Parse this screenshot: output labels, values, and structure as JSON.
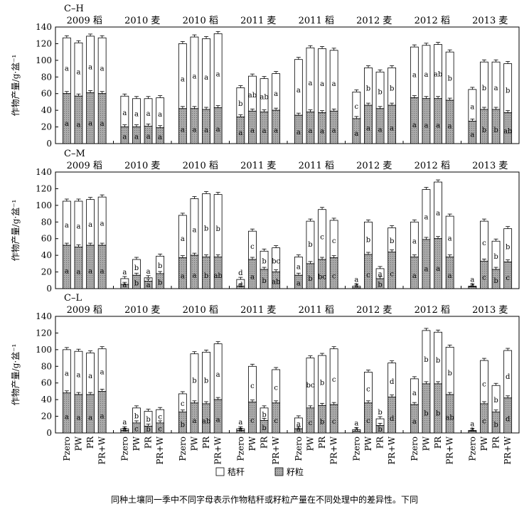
{
  "caption": "同种土壤同一季中不同字母表示作物秸秆或籽粒产量在不同处理中的差异性。下同",
  "chart_data": {
    "type": "bar",
    "stacked": true,
    "ylabel": "作物产量/g·盆⁻¹",
    "ylim": [
      0,
      140
    ],
    "yticks": [
      0,
      20,
      40,
      60,
      80,
      100,
      120,
      140
    ],
    "treatments": [
      "Pzero",
      "PW",
      "PR",
      "PR+W"
    ],
    "seasons": [
      "2009 稻",
      "2010 麦",
      "2010 稻",
      "2011 麦",
      "2011 稻",
      "2012 麦",
      "2012 稻",
      "2013 麦"
    ],
    "legend": [
      {
        "name": "秸秆",
        "color": "#ffffff"
      },
      {
        "name": "籽粒",
        "color": "#a9a9a9"
      }
    ],
    "legend_position": "bottom",
    "panels": [
      {
        "label": "C–H",
        "grain": [
          [
            60,
            57,
            61,
            60
          ],
          [
            20,
            20,
            21,
            19
          ],
          [
            42,
            42,
            41,
            43
          ],
          [
            32,
            39,
            38,
            40
          ],
          [
            34,
            38,
            37,
            39
          ],
          [
            30,
            46,
            42,
            46
          ],
          [
            55,
            54,
            54,
            52
          ],
          [
            27,
            41,
            41,
            37
          ]
        ],
        "total": [
          [
            127,
            121,
            129,
            127
          ],
          [
            57,
            54,
            54,
            55
          ],
          [
            120,
            128,
            126,
            132
          ],
          [
            67,
            81,
            78,
            84
          ],
          [
            101,
            115,
            114,
            112
          ],
          [
            62,
            91,
            86,
            91
          ],
          [
            116,
            118,
            119,
            110
          ],
          [
            65,
            98,
            98,
            96
          ]
        ],
        "straw_letters": [
          [
            "a",
            "a",
            "a",
            "a"
          ],
          [
            "a",
            "a",
            "a",
            "a"
          ],
          [
            "a",
            "a",
            "a",
            "a"
          ],
          [
            "b",
            "ab",
            "ab",
            "a"
          ],
          [
            "a",
            "a",
            "a",
            "a"
          ],
          [
            "c",
            "b",
            "b",
            "b"
          ],
          [
            "a",
            "a",
            "ab",
            "b"
          ],
          [
            "a",
            "b",
            "a",
            "b"
          ]
        ],
        "grain_letters": [
          [
            "a",
            "a",
            "a",
            "a"
          ],
          [
            "a",
            "a",
            "a",
            "a"
          ],
          [
            "a",
            "a",
            "a",
            "a"
          ],
          [
            "a",
            "a",
            "a",
            "a"
          ],
          [
            "a",
            "a",
            "a",
            "a"
          ],
          [
            "a",
            "a",
            "a",
            "a"
          ],
          [
            "a",
            "a",
            "a",
            "a"
          ],
          [
            "a",
            "b",
            "b",
            "ab"
          ]
        ]
      },
      {
        "label": "C–M",
        "grain": [
          [
            52,
            50,
            52,
            52
          ],
          [
            5,
            16,
            9,
            18
          ],
          [
            37,
            40,
            38,
            38
          ],
          [
            3,
            35,
            23,
            20
          ],
          [
            16,
            30,
            35,
            37
          ],
          [
            1,
            41,
            12,
            44
          ],
          [
            38,
            59,
            60,
            38
          ],
          [
            2,
            33,
            23,
            32
          ]
        ],
        "total": [
          [
            105,
            105,
            107,
            110
          ],
          [
            12,
            35,
            13,
            39
          ],
          [
            88,
            108,
            114,
            113
          ],
          [
            11,
            69,
            45,
            49
          ],
          [
            38,
            81,
            95,
            82
          ],
          [
            3,
            80,
            24,
            73
          ],
          [
            80,
            119,
            128,
            87
          ],
          [
            3,
            81,
            57,
            72
          ]
        ],
        "straw_letters": [
          [
            "a",
            "a",
            "a",
            "a"
          ],
          [
            "a",
            "b",
            "a",
            "b"
          ],
          [
            "a",
            "a",
            "b",
            "b"
          ],
          [
            "d",
            "c",
            "b",
            "bc"
          ],
          [
            "a",
            "b",
            "c",
            "c"
          ],
          [
            "a",
            "b",
            "a",
            "b"
          ],
          [
            "a",
            "a",
            "a",
            "a"
          ],
          [
            "a",
            "c",
            "b",
            "b"
          ]
        ],
        "grain_letters": [
          [
            "a",
            "a",
            "a",
            "a"
          ],
          [
            "a",
            "b",
            "a",
            "b"
          ],
          [
            "a",
            "a",
            "b",
            "ab"
          ],
          [
            "d",
            "a",
            "b",
            "ab"
          ],
          [
            "a",
            "b",
            "bc",
            "c"
          ],
          [
            "a",
            "c",
            "b",
            "c"
          ],
          [
            "a",
            "a",
            "a",
            "a"
          ],
          [
            "a",
            "c",
            "b",
            "c"
          ]
        ]
      },
      {
        "label": "C–L",
        "grain": [
          [
            48,
            46,
            46,
            50
          ],
          [
            3,
            12,
            8,
            12
          ],
          [
            25,
            36,
            35,
            40
          ],
          [
            3,
            37,
            15,
            36
          ],
          [
            5,
            30,
            33,
            34
          ],
          [
            2,
            36,
            9,
            43
          ],
          [
            34,
            59,
            59,
            46
          ],
          [
            2,
            35,
            25,
            42
          ]
        ],
        "total": [
          [
            100,
            98,
            96,
            101
          ],
          [
            5,
            30,
            26,
            28
          ],
          [
            47,
            95,
            97,
            107
          ],
          [
            5,
            80,
            30,
            76
          ],
          [
            18,
            90,
            93,
            101
          ],
          [
            4,
            73,
            17,
            84
          ],
          [
            65,
            123,
            121,
            103
          ],
          [
            3,
            87,
            57,
            99
          ]
        ],
        "straw_letters": [
          [
            "a",
            "a",
            "a",
            "a"
          ],
          [
            "a",
            "b",
            "b",
            "c"
          ],
          [
            "c",
            "b",
            "b",
            "a"
          ],
          [
            "a",
            "c",
            "b",
            "c"
          ],
          [
            "a",
            "bc",
            "b",
            "c"
          ],
          [
            "a",
            "c",
            "b",
            "d"
          ],
          [
            "a",
            "b",
            "b",
            "b"
          ],
          [
            "a",
            "c",
            "b",
            "d"
          ]
        ],
        "grain_letters": [
          [
            "a",
            "a",
            "a",
            "a"
          ],
          [
            "a",
            "c",
            "b",
            "c"
          ],
          [
            "b",
            "a",
            "ab",
            "a"
          ],
          [
            "a",
            "c",
            "b",
            "c"
          ],
          [
            "a",
            "c",
            "b",
            "c"
          ],
          [
            "a",
            "c",
            "b",
            "d"
          ],
          [
            "a",
            "b",
            "b",
            "ab"
          ],
          [
            "a",
            "c",
            "b",
            "d"
          ]
        ]
      }
    ]
  }
}
